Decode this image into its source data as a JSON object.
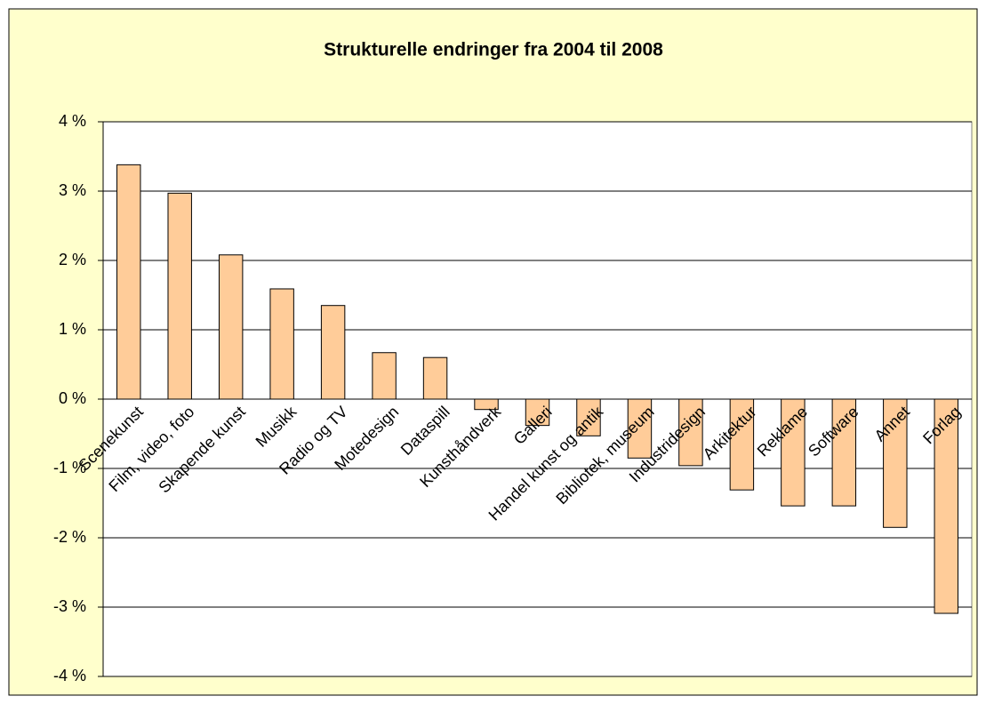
{
  "chart_data": {
    "type": "bar",
    "title": "Strukturelle endringer fra 2004 til 2008",
    "categories": [
      "Scenekunst",
      "Film, video, foto",
      "Skapende kunst",
      "Musikk",
      "Radio og TV",
      "Motedesign",
      "Dataspill",
      "Kunsthåndverk",
      "Galleri",
      "Handel kunst og antik",
      "Bibliotek, museum",
      "Industridesign",
      "Arkitektur",
      "Reklame",
      "Software",
      "Annet",
      "Forlag"
    ],
    "values": [
      3.38,
      2.97,
      2.08,
      1.59,
      1.35,
      0.67,
      0.6,
      -0.15,
      -0.38,
      -0.53,
      -0.85,
      -0.96,
      -1.31,
      -1.54,
      -1.54,
      -1.85,
      -3.09
    ],
    "color": "#ffcc99",
    "ylim": [
      -4,
      4
    ],
    "yticks": [
      {
        "value": -4,
        "label": "-4 %"
      },
      {
        "value": -3,
        "label": "-3 %"
      },
      {
        "value": -2,
        "label": "-2 %"
      },
      {
        "value": -1,
        "label": "-1 %"
      },
      {
        "value": 0,
        "label": "0 %"
      },
      {
        "value": 1,
        "label": "1 %"
      },
      {
        "value": 2,
        "label": "2 %"
      },
      {
        "value": 3,
        "label": "3 %"
      },
      {
        "value": 4,
        "label": "4 %"
      }
    ],
    "grid": true
  }
}
